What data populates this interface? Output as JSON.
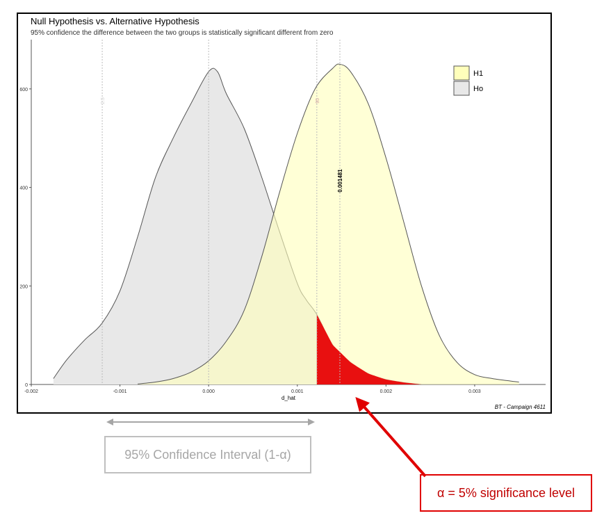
{
  "chart_data": {
    "type": "area",
    "title": "Null Hypothesis vs. Alternative Hypothesis",
    "subtitle": "95% confidence the difference between the two groups is statistically significant different from zero",
    "xlabel": "d_hat",
    "ylabel": "",
    "xlim": [
      -0.002,
      0.0038
    ],
    "ylim": [
      0,
      700
    ],
    "x_ticks": [
      -0.002,
      -0.001,
      0.0,
      0.001,
      0.002,
      0.003
    ],
    "x_tick_labels": [
      "-0.002",
      "-0.001",
      "0.000",
      "0.001",
      "0.002",
      "0.003"
    ],
    "y_ticks": [
      0,
      200,
      400,
      600
    ],
    "y_tick_labels": [
      "0",
      "200",
      "400",
      "600"
    ],
    "grid": false,
    "legend_placement": "top-right",
    "series": [
      {
        "name": "H1",
        "color": "#ffffbb",
        "x": [
          -0.0008,
          -0.0006,
          -0.0004,
          -0.0002,
          0.0,
          0.0002,
          0.0004,
          0.0006,
          0.0008,
          0.001,
          0.0012,
          0.0014,
          0.00148,
          0.0016,
          0.0018,
          0.002,
          0.0022,
          0.0024,
          0.0026,
          0.0028,
          0.003,
          0.0032,
          0.0034,
          0.0035
        ],
        "y": [
          1,
          5,
          12,
          25,
          48,
          88,
          150,
          260,
          390,
          510,
          600,
          642,
          650,
          635,
          570,
          460,
          330,
          200,
          100,
          45,
          20,
          12,
          7,
          5
        ]
      },
      {
        "name": "Ho",
        "color": "#e8e8e8",
        "x": [
          -0.00175,
          -0.0016,
          -0.0014,
          -0.0012,
          -0.001,
          -0.0008,
          -0.0006,
          -0.0004,
          -0.0002,
          0.0,
          0.0001,
          0.0002,
          0.0004,
          0.0006,
          0.0008,
          0.001,
          0.0011,
          0.00122,
          0.0014,
          0.0016,
          0.0018,
          0.002,
          0.0022,
          0.0024
        ],
        "y": [
          12,
          50,
          90,
          125,
          190,
          300,
          420,
          500,
          570,
          635,
          635,
          590,
          520,
          420,
          310,
          205,
          172,
          142,
          80,
          45,
          22,
          10,
          4,
          0
        ]
      }
    ],
    "vlines": [
      {
        "x": -0.0012,
        "label": "2.5",
        "color": "#d0d0d0"
      },
      {
        "x": 0.0,
        "label": "",
        "color": "#d0d0d0"
      },
      {
        "x": 0.00122,
        "label": "95",
        "color": "#d0a0a0"
      },
      {
        "x": 0.00148,
        "label": "0.001481",
        "color": "#d0d0d0"
      }
    ],
    "critical_value": 0.00122,
    "rejection_region_color": "#e81010",
    "caption": "BT - Campaign 4611"
  },
  "annotations": {
    "ci_label": "95% Confidence Interval (1-α)",
    "alpha_label": "α = 5% significance level"
  }
}
